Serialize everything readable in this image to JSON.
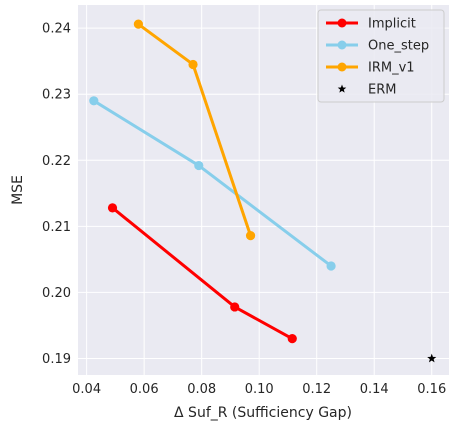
{
  "chart_data": {
    "type": "line",
    "title": "",
    "xlabel": "Δ Suf_R (Sufficiency Gap)",
    "ylabel": "MSE",
    "xlim": [
      0.037,
      0.166
    ],
    "ylim": [
      0.1875,
      0.2435
    ],
    "xticks": [
      "0.04",
      "0.06",
      "0.08",
      "0.10",
      "0.12",
      "0.14",
      "0.16"
    ],
    "yticks": [
      "0.19",
      "0.20",
      "0.21",
      "0.22",
      "0.23",
      "0.24"
    ],
    "grid": true,
    "legend_position": "top-right",
    "series": [
      {
        "name": "Implicit",
        "color": "#ff0000",
        "marker": "circle",
        "points": [
          [
            0.049,
            0.2128
          ],
          [
            0.0915,
            0.1978
          ],
          [
            0.1115,
            0.193
          ]
        ]
      },
      {
        "name": "One_step",
        "color": "#87ceeb",
        "marker": "circle",
        "points": [
          [
            0.0425,
            0.229
          ],
          [
            0.079,
            0.2192
          ],
          [
            0.125,
            0.204
          ]
        ]
      },
      {
        "name": "IRM_v1",
        "color": "#ffa500",
        "marker": "circle",
        "points": [
          [
            0.058,
            0.2406
          ],
          [
            0.077,
            0.2345
          ],
          [
            0.097,
            0.2086
          ]
        ]
      },
      {
        "name": "ERM",
        "color": "#000000",
        "marker": "star",
        "points": [
          [
            0.16,
            0.19
          ]
        ]
      }
    ]
  }
}
